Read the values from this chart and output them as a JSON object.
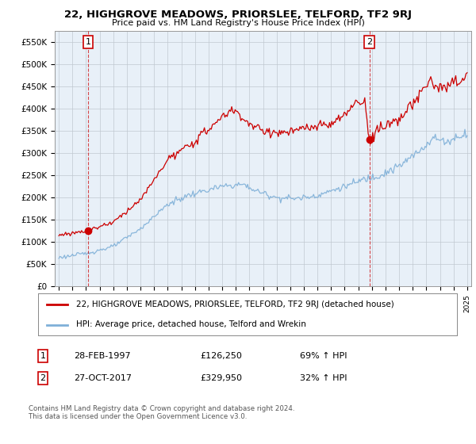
{
  "title": "22, HIGHGROVE MEADOWS, PRIORSLEE, TELFORD, TF2 9RJ",
  "subtitle": "Price paid vs. HM Land Registry's House Price Index (HPI)",
  "ylim": [
    0,
    575000
  ],
  "xlim_start": 1994.7,
  "xlim_end": 2025.3,
  "sale1_year": 1997.15,
  "sale1_price": 126250,
  "sale2_year": 2017.82,
  "sale2_price": 329950,
  "red_line_color": "#cc0000",
  "blue_line_color": "#7fb0d8",
  "legend_label_red": "22, HIGHGROVE MEADOWS, PRIORSLEE, TELFORD, TF2 9RJ (detached house)",
  "legend_label_blue": "HPI: Average price, detached house, Telford and Wrekin",
  "footnote": "Contains HM Land Registry data © Crown copyright and database right 2024.\nThis data is licensed under the Open Government Licence v3.0.",
  "plot_bg_color": "#e8f0f8",
  "grid_color": "#c0c8d0"
}
